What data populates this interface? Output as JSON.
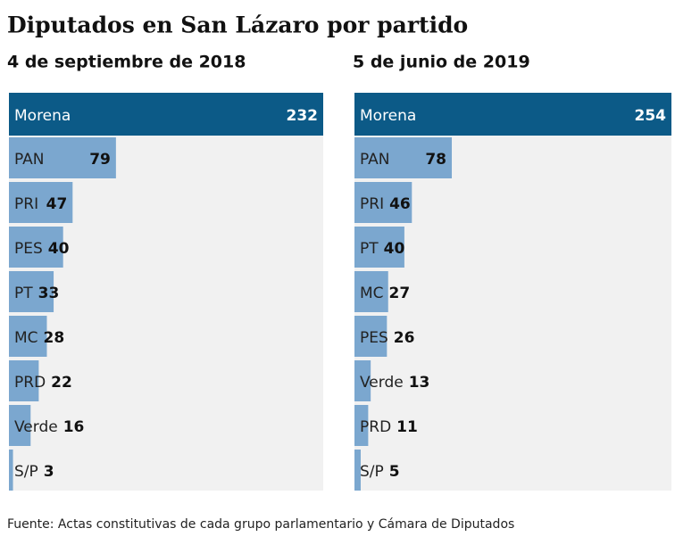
{
  "title": "Diputados en San Lázaro por partido",
  "source": "Fuente:  Actas constitutivas de cada grupo parlamentario y Cámara de Diputados",
  "chart_data": [
    {
      "type": "bar",
      "subtitle": "4 de septiembre de 2018",
      "categories": [
        "Morena",
        "PAN",
        "PRI",
        "PES",
        "PT",
        "MC",
        "PRD",
        "Verde",
        "S/P"
      ],
      "values": [
        232,
        79,
        47,
        40,
        33,
        28,
        22,
        16,
        3
      ],
      "colors": [
        "#0c5a87",
        "#7ba7cf",
        "#7ba7cf",
        "#7ba7cf",
        "#7ba7cf",
        "#7ba7cf",
        "#7ba7cf",
        "#7ba7cf",
        "#7ba7cf"
      ]
    },
    {
      "type": "bar",
      "subtitle": "5 de junio de 2019",
      "categories": [
        "Morena",
        "PAN",
        "PRI",
        "PT",
        "MC",
        "PES",
        "Verde",
        "PRD",
        "S/P"
      ],
      "values": [
        254,
        78,
        46,
        40,
        27,
        26,
        13,
        11,
        5
      ],
      "colors": [
        "#0c5a87",
        "#7ba7cf",
        "#7ba7cf",
        "#7ba7cf",
        "#7ba7cf",
        "#7ba7cf",
        "#7ba7cf",
        "#7ba7cf",
        "#7ba7cf"
      ]
    }
  ]
}
